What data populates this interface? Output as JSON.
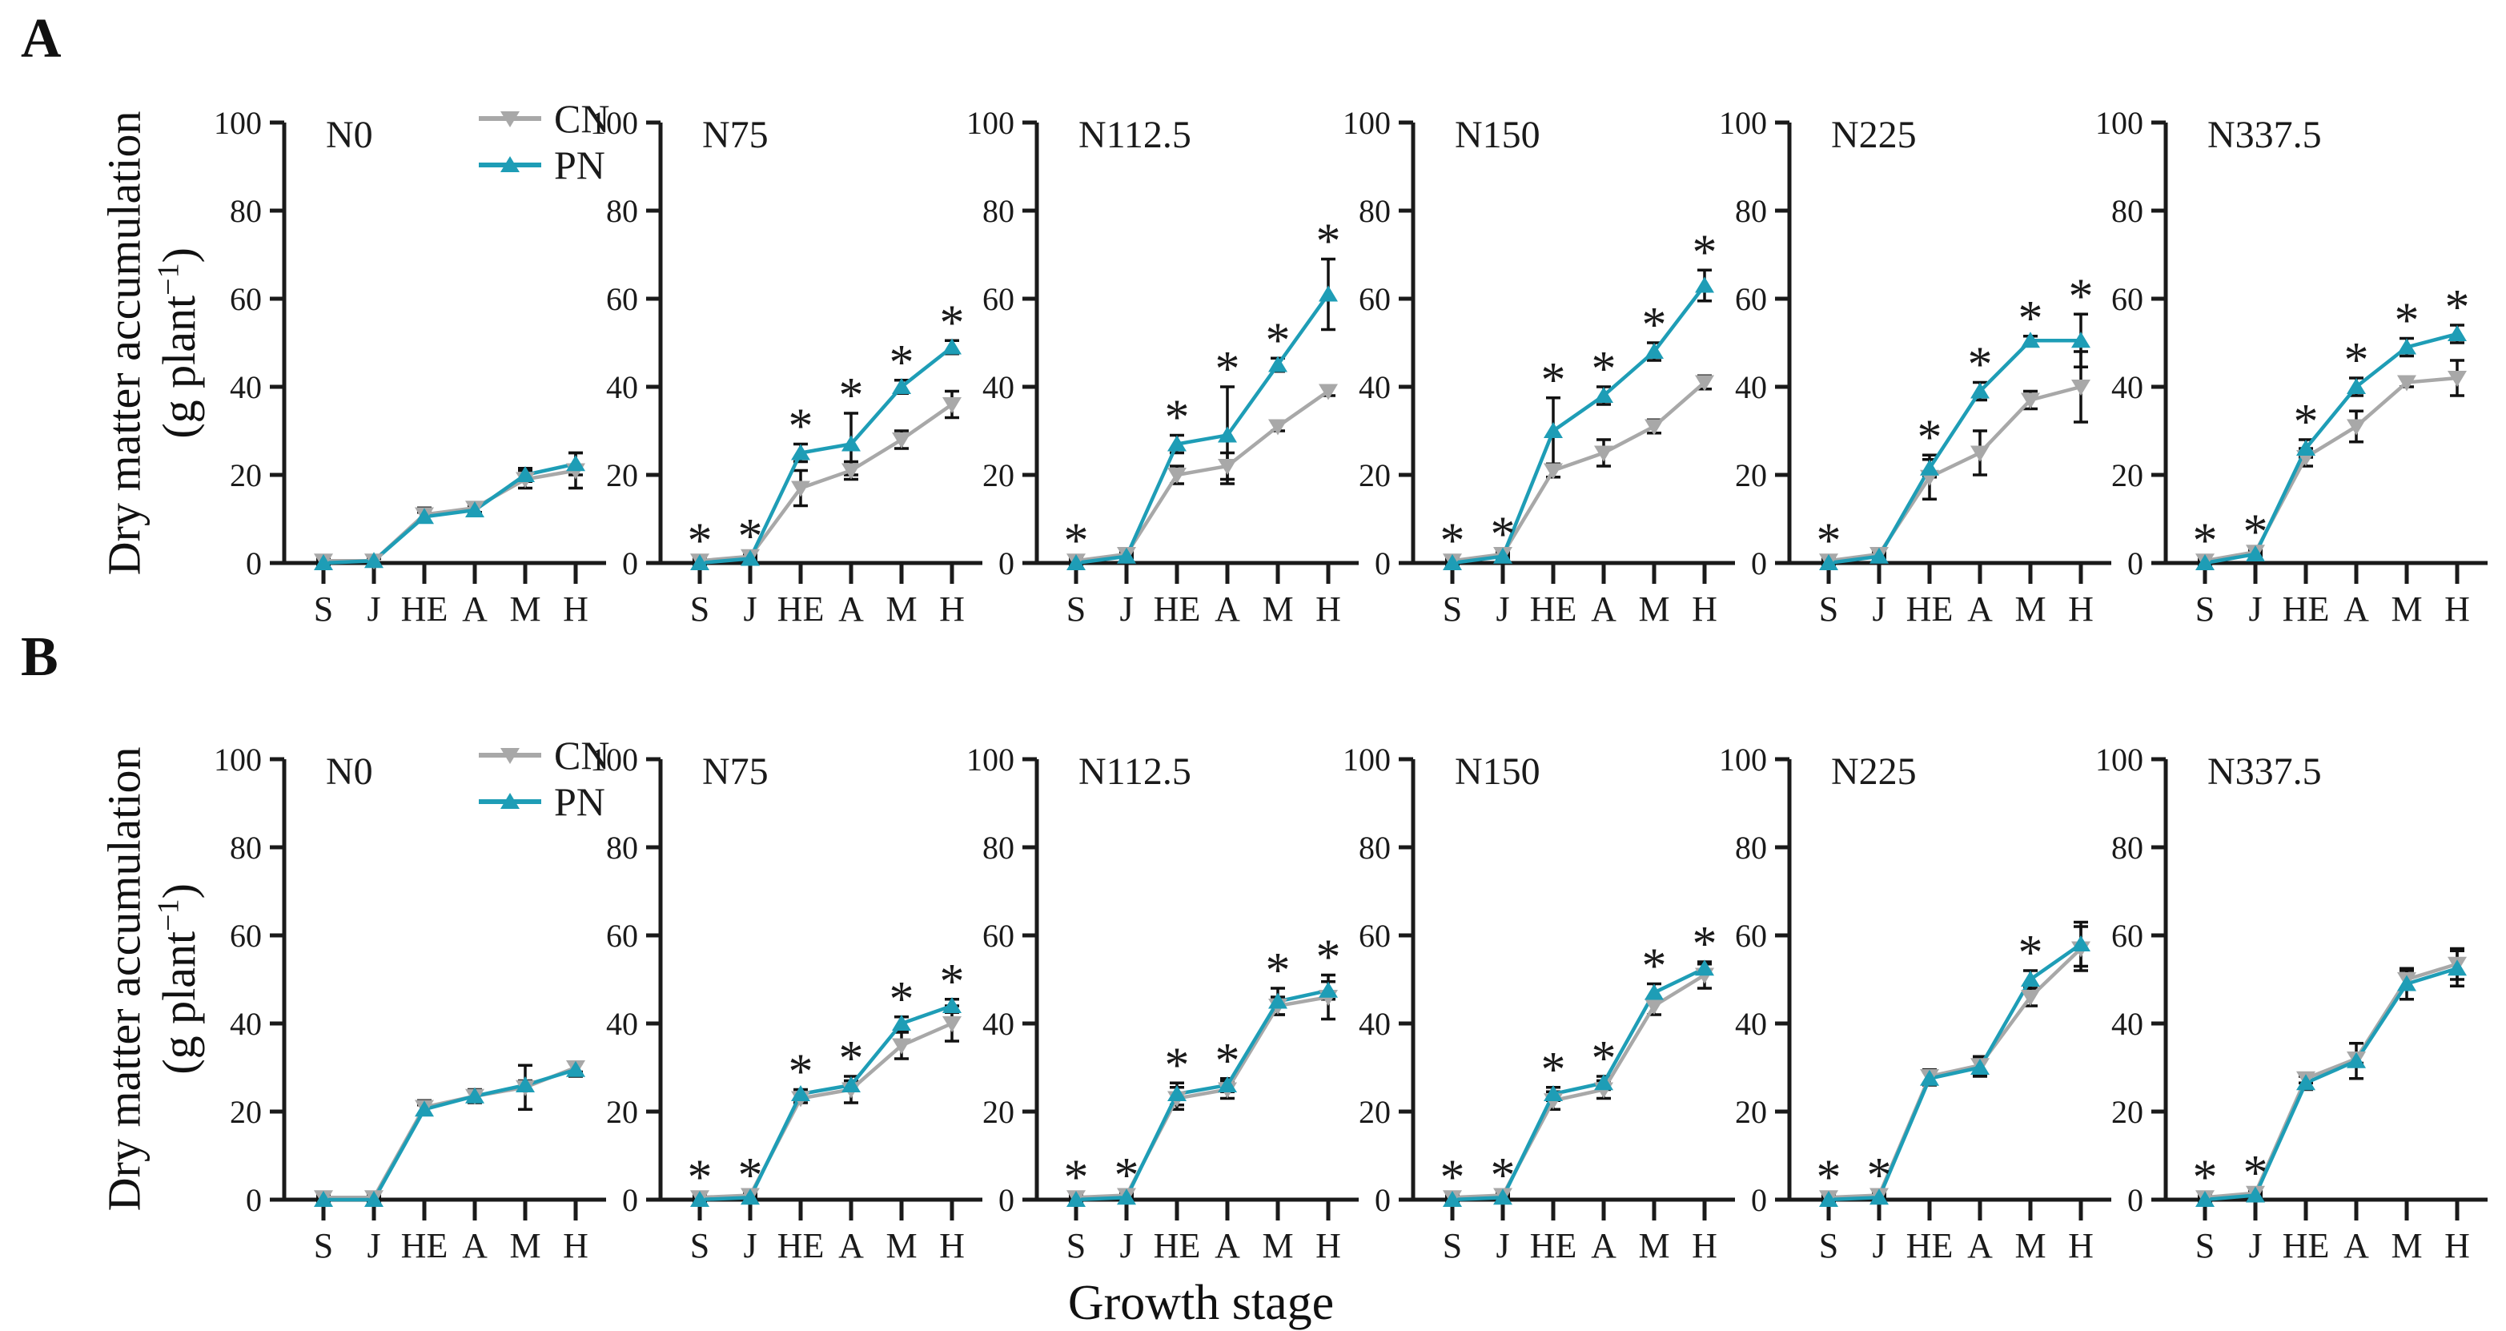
{
  "figure": {
    "row_labels": [
      "A",
      "B"
    ],
    "ylabel_line1": "Dry matter accumulation",
    "ylabel_line2_pre": "(g plant",
    "ylabel_sup": "−1",
    "ylabel_line2_post": ")",
    "xlabel": "Growth stage",
    "colors": {
      "cn": "#a8a8a8",
      "pn": "#1e9db6",
      "axis": "#1a1a1a",
      "error": "#111111"
    }
  },
  "chart_data": {
    "type": "line",
    "categories": [
      "S",
      "J",
      "HE",
      "A",
      "M",
      "H"
    ],
    "xlabel": "Growth stage",
    "ylabel": "Dry matter accumulation (g plant−1)",
    "ylim": [
      0,
      100
    ],
    "yticks": [
      0,
      20,
      40,
      60,
      80,
      100
    ],
    "legend": [
      {
        "name": "CN",
        "color": "#a8a8a8",
        "marker": "triangle-down"
      },
      {
        "name": "PN",
        "color": "#1e9db6",
        "marker": "triangle-up"
      }
    ],
    "rows": [
      {
        "label": "A",
        "panels": [
          {
            "title": "N0",
            "show_legend": true,
            "series": [
              {
                "name": "CN",
                "values": [
                  0.5,
                  0.5,
                  11,
                  12.5,
                  19,
                  21
                ],
                "errors": [
                  0.5,
                  0.5,
                  1.5,
                  1,
                  2,
                  4
                ]
              },
              {
                "name": "PN",
                "values": [
                  0,
                  0.5,
                  10.5,
                  12,
                  20,
                  22.5
                ],
                "errors": [
                  0.5,
                  0.5,
                  1,
                  1,
                  1.5,
                  2.5
                ]
              }
            ],
            "sig_stages": []
          },
          {
            "title": "N75",
            "show_legend": false,
            "series": [
              {
                "name": "CN",
                "values": [
                  0.5,
                  1.5,
                  17,
                  21,
                  28,
                  36
                ],
                "errors": [
                  0.5,
                  0.5,
                  4,
                  2,
                  2,
                  3
                ]
              },
              {
                "name": "PN",
                "values": [
                  0,
                  1,
                  25,
                  27,
                  40,
                  49
                ],
                "errors": [
                  0.5,
                  0.5,
                  2,
                  7,
                  1.5,
                  1.5
                ]
              }
            ],
            "sig_stages": [
              0,
              1,
              2,
              3,
              4,
              5
            ]
          },
          {
            "title": "N112.5",
            "show_legend": false,
            "series": [
              {
                "name": "CN",
                "values": [
                  0.5,
                  2,
                  20,
                  22,
                  31,
                  39
                ],
                "errors": [
                  0.5,
                  0.5,
                  2,
                  3,
                  1,
                  1
                ]
              },
              {
                "name": "PN",
                "values": [
                  0,
                  1.5,
                  27,
                  29,
                  45,
                  61
                ],
                "errors": [
                  0.5,
                  0.5,
                  2,
                  11,
                  1.5,
                  8
                ]
              }
            ],
            "sig_stages": [
              0,
              2,
              3,
              4,
              5
            ]
          },
          {
            "title": "N150",
            "show_legend": false,
            "series": [
              {
                "name": "CN",
                "values": [
                  0.5,
                  2,
                  21,
                  25,
                  31,
                  41
                ],
                "errors": [
                  0.5,
                  0.5,
                  1.5,
                  3,
                  1.5,
                  1.5
                ]
              },
              {
                "name": "PN",
                "values": [
                  0,
                  1.5,
                  30,
                  38,
                  48,
                  63
                ],
                "errors": [
                  0.5,
                  0.5,
                  7.5,
                  2,
                  2,
                  3.5
                ]
              }
            ],
            "sig_stages": [
              0,
              1,
              2,
              3,
              4,
              5
            ]
          },
          {
            "title": "N225",
            "show_legend": false,
            "series": [
              {
                "name": "CN",
                "values": [
                  0.5,
                  2,
                  19.5,
                  25,
                  37,
                  40
                ],
                "errors": [
                  0.5,
                  0.5,
                  5,
                  5,
                  2,
                  8
                ]
              },
              {
                "name": "PN",
                "values": [
                  0,
                  1.5,
                  21.5,
                  39,
                  50.5,
                  50.5
                ],
                "errors": [
                  0.5,
                  0.5,
                  2,
                  2,
                  1,
                  6
                ]
              }
            ],
            "sig_stages": [
              0,
              2,
              3,
              4,
              5
            ]
          },
          {
            "title": "N337.5",
            "show_legend": false,
            "series": [
              {
                "name": "CN",
                "values": [
                  0.5,
                  2.5,
                  24,
                  31,
                  41,
                  42
                ],
                "errors": [
                  0.5,
                  0.5,
                  2,
                  3.5,
                  1,
                  4
                ]
              },
              {
                "name": "PN",
                "values": [
                  0,
                  2,
                  26,
                  40,
                  49,
                  52
                ],
                "errors": [
                  0.5,
                  0.5,
                  2,
                  2,
                  2,
                  2
                ]
              }
            ],
            "sig_stages": [
              0,
              1,
              2,
              3,
              4,
              5
            ]
          }
        ]
      },
      {
        "label": "B",
        "panels": [
          {
            "title": "N0",
            "show_legend": true,
            "series": [
              {
                "name": "CN",
                "values": [
                  0.5,
                  0.5,
                  21,
                  23.5,
                  25.5,
                  30
                ],
                "errors": [
                  0.5,
                  0.5,
                  1.5,
                  1.5,
                  5,
                  1
                ]
              },
              {
                "name": "PN",
                "values": [
                  0,
                  0,
                  20.5,
                  23.5,
                  26,
                  29.5
                ],
                "errors": [
                  0.5,
                  0.5,
                  1,
                  1,
                  1,
                  1.5
                ]
              }
            ],
            "sig_stages": []
          },
          {
            "title": "N75",
            "show_legend": false,
            "series": [
              {
                "name": "CN",
                "values": [
                  0.5,
                  1,
                  23,
                  25,
                  35,
                  40
                ],
                "errors": [
                  0.5,
                  0.5,
                  1,
                  3,
                  3,
                  4
                ]
              },
              {
                "name": "PN",
                "values": [
                  0,
                  0.5,
                  24,
                  26,
                  40,
                  44
                ],
                "errors": [
                  0.5,
                  0.5,
                  1,
                  1,
                  1.5,
                  1.5
                ]
              }
            ],
            "sig_stages": [
              0,
              1,
              2,
              3,
              4,
              5
            ]
          },
          {
            "title": "N112.5",
            "show_legend": false,
            "series": [
              {
                "name": "CN",
                "values": [
                  0.5,
                  1,
                  23,
                  25,
                  44,
                  46
                ],
                "errors": [
                  0.5,
                  0.5,
                  2.5,
                  2,
                  2,
                  5
                ]
              },
              {
                "name": "PN",
                "values": [
                  0,
                  0.5,
                  24,
                  26,
                  45,
                  47.5
                ],
                "errors": [
                  0.5,
                  0.5,
                  2.5,
                  1.5,
                  3,
                  2
                ]
              }
            ],
            "sig_stages": [
              0,
              1,
              2,
              3,
              4,
              5
            ]
          },
          {
            "title": "N150",
            "show_legend": false,
            "series": [
              {
                "name": "CN",
                "values": [
                  0.5,
                  1,
                  22.5,
                  25,
                  44,
                  51
                ],
                "errors": [
                  0.5,
                  0.5,
                  2,
                  2,
                  2,
                  3
                ]
              },
              {
                "name": "PN",
                "values": [
                  0,
                  0.5,
                  24,
                  26.5,
                  47,
                  52.5
                ],
                "errors": [
                  0.5,
                  0.5,
                  1.5,
                  1.5,
                  2,
                  1
                ]
              }
            ],
            "sig_stages": [
              0,
              1,
              2,
              3,
              4,
              5
            ]
          },
          {
            "title": "N225",
            "show_legend": false,
            "series": [
              {
                "name": "CN",
                "values": [
                  0.5,
                  1,
                  28,
                  30.5,
                  46,
                  57
                ],
                "errors": [
                  0.5,
                  0.5,
                  1.5,
                  2,
                  2,
                  5
                ]
              },
              {
                "name": "PN",
                "values": [
                  0,
                  0.5,
                  27.5,
                  30,
                  50,
                  58
                ],
                "errors": [
                  0.5,
                  0.5,
                  1.5,
                  2,
                  2,
                  5
                ]
              }
            ],
            "sig_stages": [
              0,
              1,
              4
            ]
          },
          {
            "title": "N337.5",
            "show_legend": false,
            "series": [
              {
                "name": "CN",
                "values": [
                  0.5,
                  1.5,
                  27.5,
                  32,
                  50,
                  53.5
                ],
                "errors": [
                  0.5,
                  0.5,
                  1,
                  1,
                  2,
                  3.5
                ]
              },
              {
                "name": "PN",
                "values": [
                  0,
                  1,
                  26.5,
                  31.5,
                  49,
                  52.5
                ],
                "errors": [
                  0.5,
                  0.5,
                  1.5,
                  4,
                  3.5,
                  4
                ]
              }
            ],
            "sig_stages": [
              0,
              1
            ]
          }
        ]
      }
    ]
  }
}
